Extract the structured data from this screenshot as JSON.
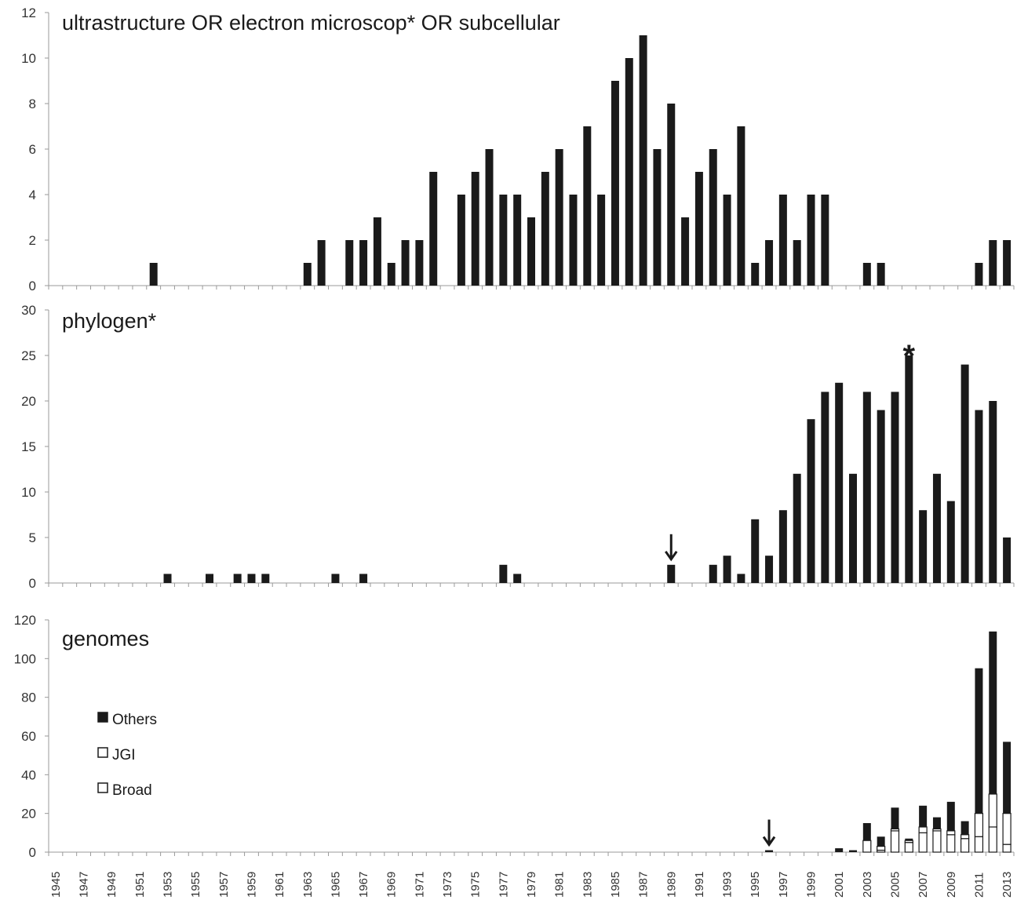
{
  "chart_data": [
    {
      "type": "bar",
      "title": "ultrastructure OR electron microscop* OR subcellular",
      "ylim": [
        0,
        12
      ],
      "yticks": [
        "0",
        "2",
        "4",
        "6",
        "8",
        "10",
        "12"
      ],
      "grid": false,
      "x": [
        1952,
        1963,
        1964,
        1966,
        1967,
        1968,
        1969,
        1970,
        1971,
        1972,
        1974,
        1975,
        1976,
        1977,
        1978,
        1979,
        1980,
        1981,
        1982,
        1983,
        1984,
        1985,
        1986,
        1987,
        1988,
        1989,
        1990,
        1991,
        1992,
        1993,
        1994,
        1995,
        1996,
        1997,
        1998,
        1999,
        2000,
        2003,
        2004,
        2011,
        2012,
        2013
      ],
      "values": [
        1,
        1,
        2,
        2,
        2,
        3,
        1,
        2,
        2,
        5,
        4,
        5,
        6,
        4,
        4,
        3,
        5,
        6,
        4,
        7,
        4,
        9,
        10,
        11,
        6,
        8,
        3,
        5,
        6,
        4,
        7,
        1,
        2,
        4,
        2,
        4,
        4,
        1,
        1,
        1,
        2,
        2
      ]
    },
    {
      "type": "bar",
      "title": "phylogen*",
      "ylim": [
        0,
        30
      ],
      "yticks": [
        "0",
        "5",
        "10",
        "15",
        "20",
        "25",
        "30"
      ],
      "grid": false,
      "x": [
        1953,
        1956,
        1958,
        1959,
        1960,
        1965,
        1967,
        1977,
        1978,
        1989,
        1992,
        1993,
        1994,
        1995,
        1996,
        1997,
        1998,
        1999,
        2000,
        2001,
        2002,
        2003,
        2004,
        2005,
        2006,
        2007,
        2008,
        2009,
        2010,
        2011,
        2012,
        2013
      ],
      "values": [
        1,
        1,
        1,
        1,
        1,
        1,
        1,
        2,
        1,
        2,
        2,
        3,
        1,
        7,
        3,
        8,
        12,
        18,
        21,
        22,
        12,
        21,
        19,
        21,
        25,
        8,
        12,
        9,
        24,
        19,
        20,
        5
      ],
      "annotations": [
        {
          "type": "arrow",
          "x": 1989
        },
        {
          "type": "asterisk",
          "x": 2006,
          "text": "*"
        }
      ]
    },
    {
      "type": "bar",
      "stacked": true,
      "title": "genomes",
      "ylim": [
        0,
        120
      ],
      "yticks": [
        "0",
        "20",
        "40",
        "60",
        "80",
        "100",
        "120"
      ],
      "grid": false,
      "legend_position": "left",
      "x": [
        1996,
        2001,
        2002,
        2003,
        2004,
        2005,
        2006,
        2007,
        2008,
        2009,
        2010,
        2011,
        2012,
        2013
      ],
      "series": [
        {
          "name": "Broad",
          "color": "#ffffff",
          "values": [
            0,
            0,
            0,
            0,
            1,
            11,
            5,
            10,
            11,
            9,
            7,
            8,
            13,
            4
          ]
        },
        {
          "name": "JGI",
          "color": "#ffffff",
          "values": [
            0,
            0,
            0,
            6,
            2,
            1,
            1,
            3,
            1,
            2,
            2,
            12,
            17,
            16
          ]
        },
        {
          "name": "Others",
          "color": "#1a1a1a",
          "values": [
            1,
            2,
            1,
            9,
            5,
            11,
            1,
            11,
            6,
            15,
            7,
            75,
            84,
            37
          ]
        }
      ],
      "annotations": [
        {
          "type": "arrow",
          "x": 1996
        }
      ]
    }
  ],
  "x_axis": {
    "tick_labels": [
      "1945",
      "1947",
      "1949",
      "1951",
      "1953",
      "1955",
      "1957",
      "1959",
      "1961",
      "1963",
      "1965",
      "1967",
      "1969",
      "1971",
      "1973",
      "1975",
      "1977",
      "1979",
      "1981",
      "1983",
      "1985",
      "1987",
      "1989",
      "1991",
      "1993",
      "1995",
      "1997",
      "1999",
      "2001",
      "2003",
      "2005",
      "2007",
      "2009",
      "2011",
      "2013"
    ],
    "range": [
      1945,
      2013
    ]
  },
  "colors": {
    "bar": "#1a1a1a",
    "axis": "#9a9a9a",
    "text": "#333333"
  }
}
